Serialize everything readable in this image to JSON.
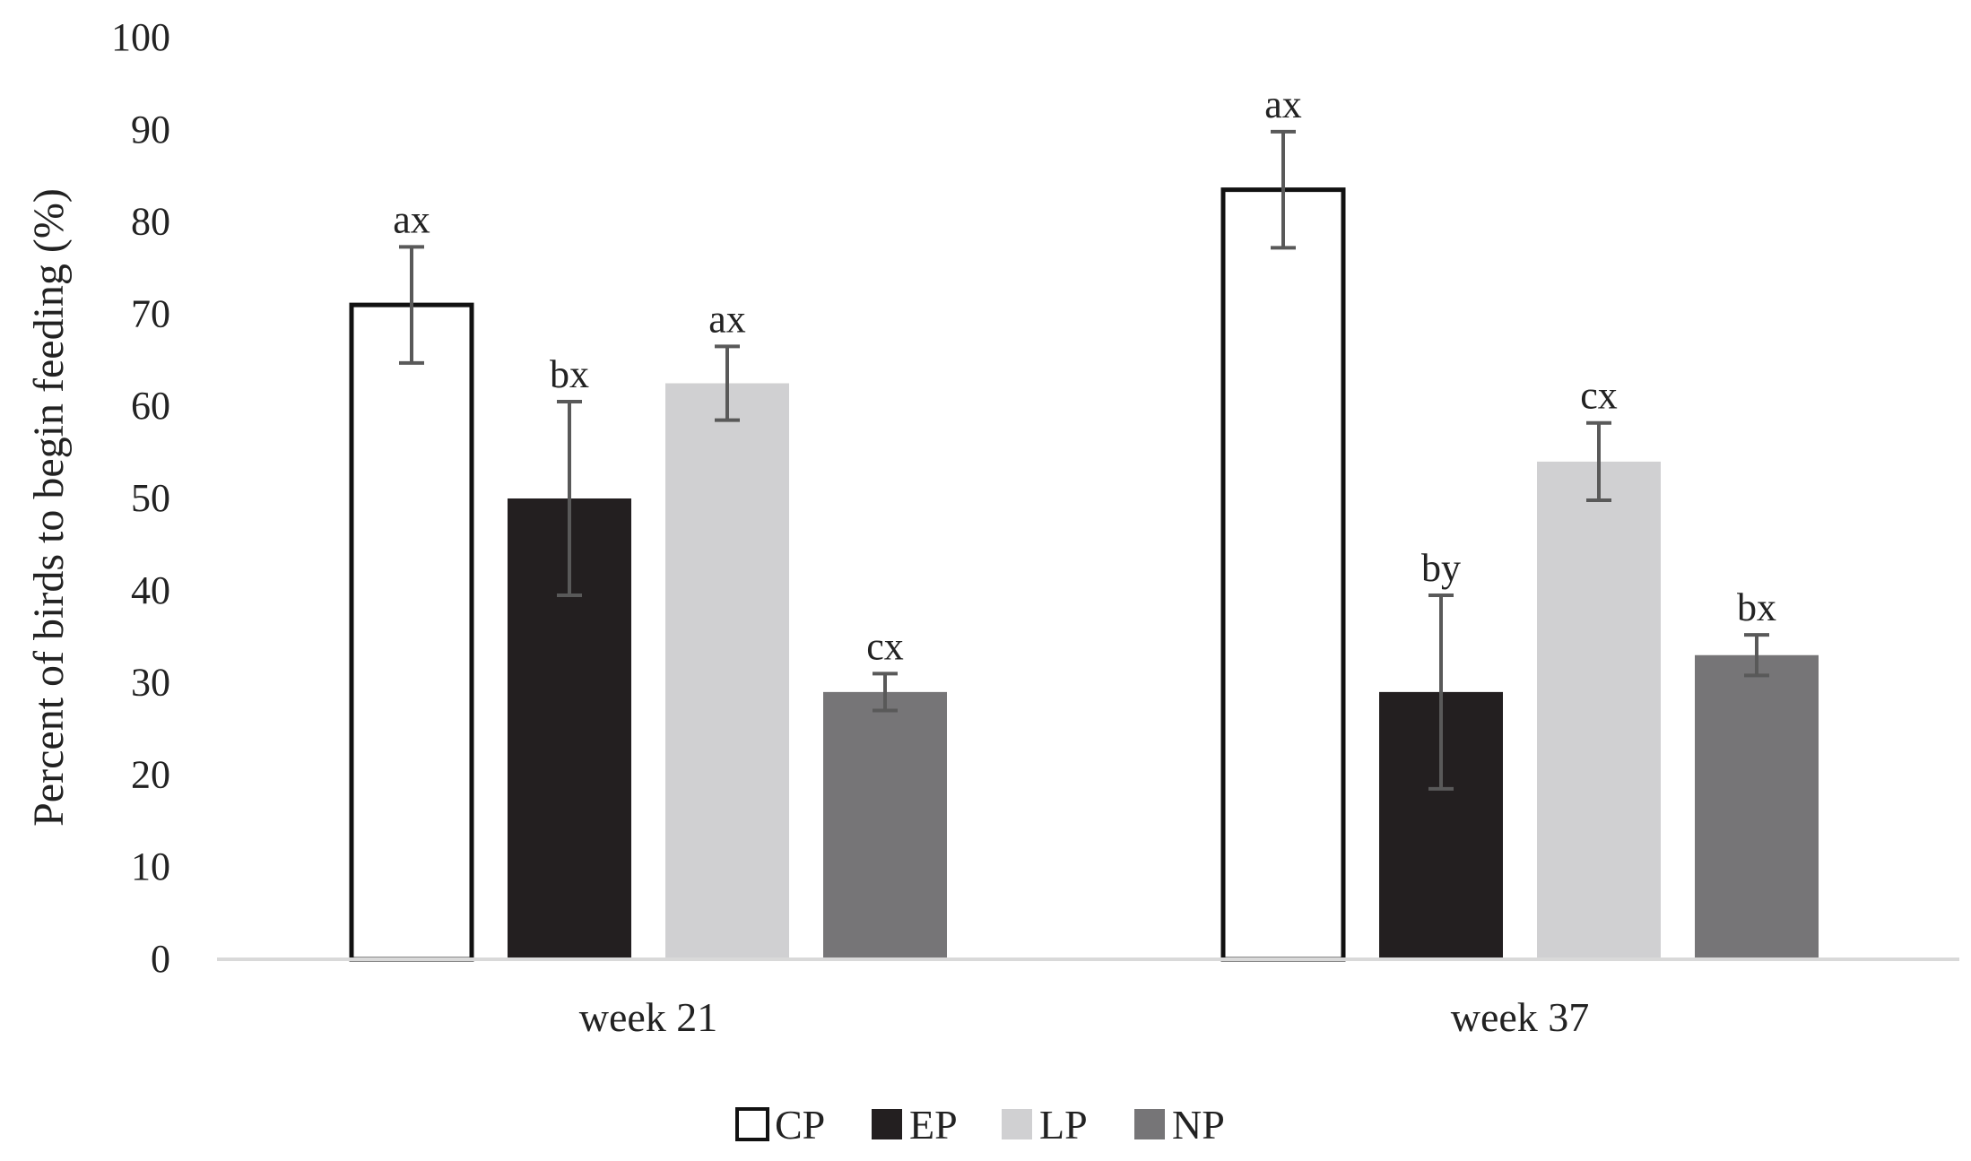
{
  "chart_data": {
    "type": "bar",
    "title": "",
    "xlabel": "",
    "ylabel": "Percent of birds to begin feeding (%)",
    "ylim": [
      0,
      100
    ],
    "yticks": [
      0,
      10,
      20,
      30,
      40,
      50,
      60,
      70,
      80,
      90,
      100
    ],
    "categories": [
      "week 21",
      "week 37"
    ],
    "series": [
      {
        "name": "CP",
        "fill": "#ffffff",
        "stroke": "#111111",
        "values": [
          71,
          83.5
        ],
        "errors": [
          6.3,
          6.3
        ],
        "labels": [
          "ax",
          "ax"
        ]
      },
      {
        "name": "EP",
        "fill": "#231f20",
        "stroke": "#231f20",
        "values": [
          50,
          29
        ],
        "errors": [
          10.5,
          10.5
        ],
        "labels": [
          "bx",
          "by"
        ]
      },
      {
        "name": "LP",
        "fill": "#d0d0d2",
        "stroke": "#d0d0d2",
        "values": [
          62.5,
          54
        ],
        "errors": [
          4,
          4.2
        ],
        "labels": [
          "ax",
          "cx"
        ]
      },
      {
        "name": "NP",
        "fill": "#767577",
        "stroke": "#767577",
        "values": [
          29,
          33
        ],
        "errors": [
          2,
          2.2
        ],
        "labels": [
          "cx",
          "bx"
        ]
      }
    ],
    "legend_position": "bottom-center",
    "grid": false,
    "colors": {
      "axis": "#d9d9d9",
      "error_bar": "#595959",
      "text": "#222222"
    }
  }
}
